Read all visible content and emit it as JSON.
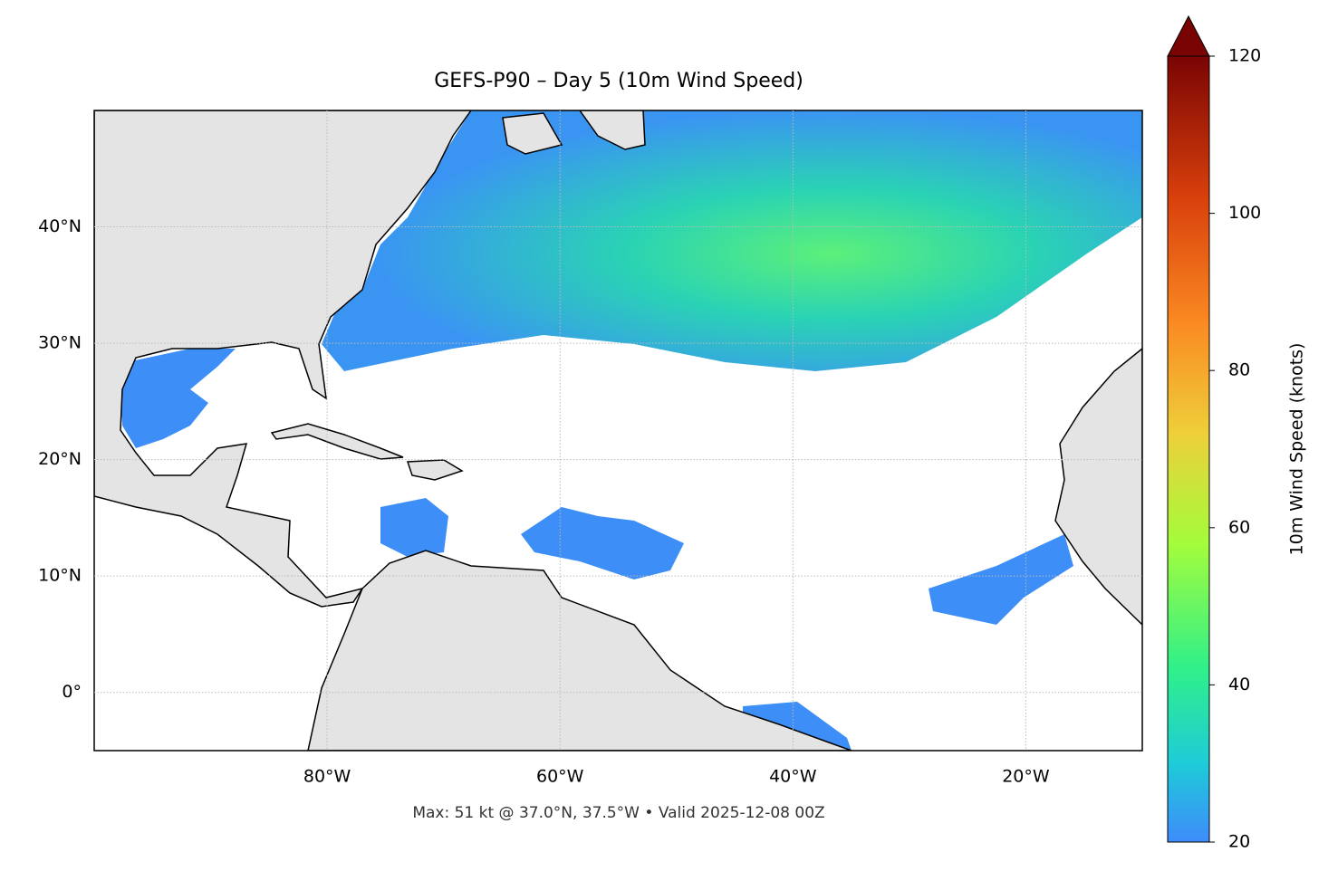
{
  "chart_data": {
    "type": "map",
    "title": "GEFS-P90 – Day 5 (10m Wind Speed)",
    "xlim": [
      -100,
      -10
    ],
    "ylim": [
      -5,
      50
    ],
    "xticks": [
      {
        "value": -80,
        "label": "80°W"
      },
      {
        "value": -60,
        "label": "60°W"
      },
      {
        "value": -40,
        "label": "40°W"
      },
      {
        "value": -20,
        "label": "20°W"
      }
    ],
    "yticks": [
      {
        "value": 40,
        "label": "40°N"
      },
      {
        "value": 30,
        "label": "30°N"
      },
      {
        "value": 20,
        "label": "20°N"
      },
      {
        "value": 10,
        "label": "10°N"
      },
      {
        "value": 0,
        "label": "0°"
      }
    ],
    "grid": true,
    "colorbar": {
      "label": "10m Wind Speed (knots)",
      "lim": [
        20,
        120
      ],
      "ticks": [
        20,
        40,
        60,
        80,
        100,
        120
      ]
    },
    "caption": "Max: 51 kt @ 37.0°N, 37.5°W • Valid 2025-12-08 00Z"
  }
}
